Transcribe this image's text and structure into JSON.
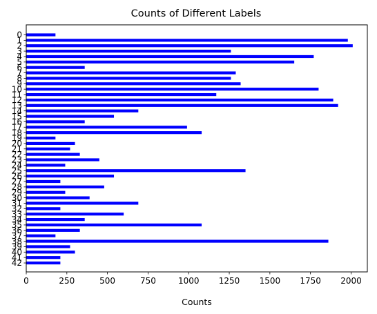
{
  "chart_data": {
    "type": "bar",
    "orientation": "horizontal",
    "title": "Counts of Different Labels",
    "xlabel": "Counts",
    "ylabel": "",
    "xlim": [
      0,
      2100
    ],
    "x_ticks": [
      0,
      250,
      500,
      750,
      1000,
      1250,
      1500,
      1750,
      2000
    ],
    "grid": false,
    "legend": "none",
    "bar_color": "#0000ff",
    "categories": [
      "0",
      "1",
      "2",
      "3",
      "4",
      "5",
      "6",
      "7",
      "8",
      "9",
      "10",
      "11",
      "12",
      "13",
      "14",
      "15",
      "16",
      "17",
      "18",
      "19",
      "20",
      "21",
      "22",
      "23",
      "24",
      "25",
      "26",
      "27",
      "28",
      "29",
      "30",
      "31",
      "32",
      "33",
      "34",
      "35",
      "36",
      "37",
      "38",
      "39",
      "40",
      "41",
      "42"
    ],
    "values": [
      180,
      1980,
      2010,
      1260,
      1770,
      1650,
      360,
      1290,
      1260,
      1320,
      1800,
      1170,
      1890,
      1920,
      690,
      540,
      360,
      990,
      1080,
      180,
      300,
      270,
      330,
      450,
      240,
      1350,
      540,
      210,
      480,
      240,
      390,
      690,
      210,
      600,
      360,
      1080,
      330,
      180,
      1860,
      270,
      300,
      210,
      210
    ]
  }
}
